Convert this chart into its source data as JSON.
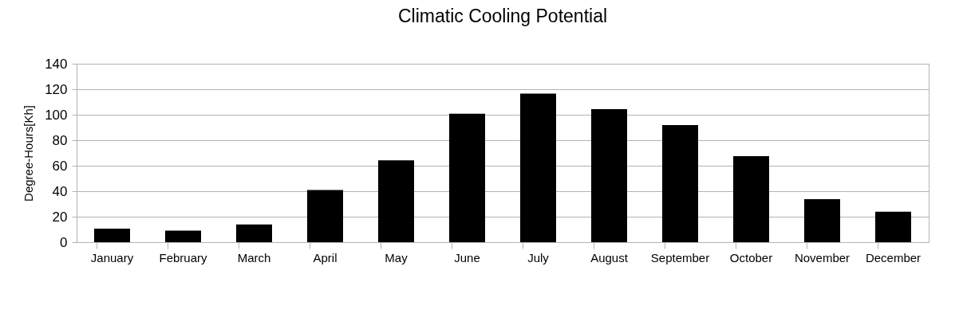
{
  "chart_data": {
    "type": "bar",
    "title": "Climatic Cooling Potential",
    "ylabel": "Degree-Hours[Kh]",
    "categories": [
      "January",
      "February",
      "March",
      "April",
      "May",
      "June",
      "July",
      "August",
      "September",
      "October",
      "November",
      "December"
    ],
    "values": [
      10.7,
      9,
      13.9,
      41,
      64.2,
      100.8,
      116.5,
      104.3,
      91.8,
      67.5,
      33.7,
      23.9
    ],
    "color": "#000000",
    "ylim": [
      0,
      140
    ],
    "yticks": [
      0,
      20,
      40,
      60,
      80,
      100,
      120,
      140
    ],
    "grid": "y"
  }
}
